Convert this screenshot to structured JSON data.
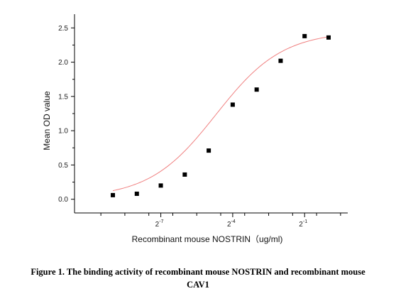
{
  "chart_data": {
    "type": "scatter",
    "title": "",
    "xlabel": "Recombinant mouse NOSTRIN（ug/ml)",
    "ylabel": "Mean OD value",
    "x_scale": "log2",
    "xlim_log2": [
      -10.6,
      0.8
    ],
    "ylim": [
      -0.2,
      2.7
    ],
    "y_ticks": [
      "0.0",
      "0.5",
      "1.0",
      "1.5",
      "2.0",
      "2.5"
    ],
    "x_ticks": [
      {
        "base": "2",
        "exp": "-7",
        "log2": -7
      },
      {
        "base": "2",
        "exp": "-4",
        "log2": -4
      },
      {
        "base": "2",
        "exp": "-1",
        "log2": -1
      }
    ],
    "series": [
      {
        "marker": "square",
        "color": "#000000",
        "x_log2": [
          -9.0,
          -8.0,
          -7.0,
          -6.0,
          -5.0,
          -4.0,
          -3.0,
          -2.0,
          -1.0,
          0.0
        ],
        "values": [
          0.06,
          0.08,
          0.2,
          0.36,
          0.71,
          1.38,
          1.6,
          2.02,
          2.38,
          2.36
        ]
      }
    ],
    "fit_curve": {
      "color": "#f08080",
      "bottom": 0.02,
      "top": 2.45,
      "x50_log2": -4.7,
      "hill": 0.72
    }
  },
  "caption": {
    "line1": "Figure 1. The binding activity of recombinant mouse NOSTRIN and recombinant mouse",
    "line2": "CAV1"
  }
}
